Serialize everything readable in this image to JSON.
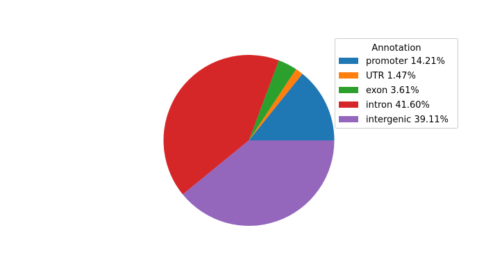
{
  "chart_data": {
    "type": "pie",
    "categories": [
      "promoter",
      "UTR",
      "exon",
      "intron",
      "intergenic"
    ],
    "values": [
      14.21,
      1.47,
      3.61,
      41.6,
      39.11
    ],
    "colors": [
      "#1f77b4",
      "#ff7f0e",
      "#2ca02c",
      "#d62728",
      "#9467bd"
    ],
    "start_angle_deg": 0,
    "direction": "counterclockwise",
    "legend": {
      "title": "Annotation",
      "placement": "right",
      "entries": [
        "promoter 14.21%",
        "UTR 1.47%",
        "exon 3.61%",
        "intron 41.60%",
        "intergenic 39.11%"
      ]
    }
  }
}
